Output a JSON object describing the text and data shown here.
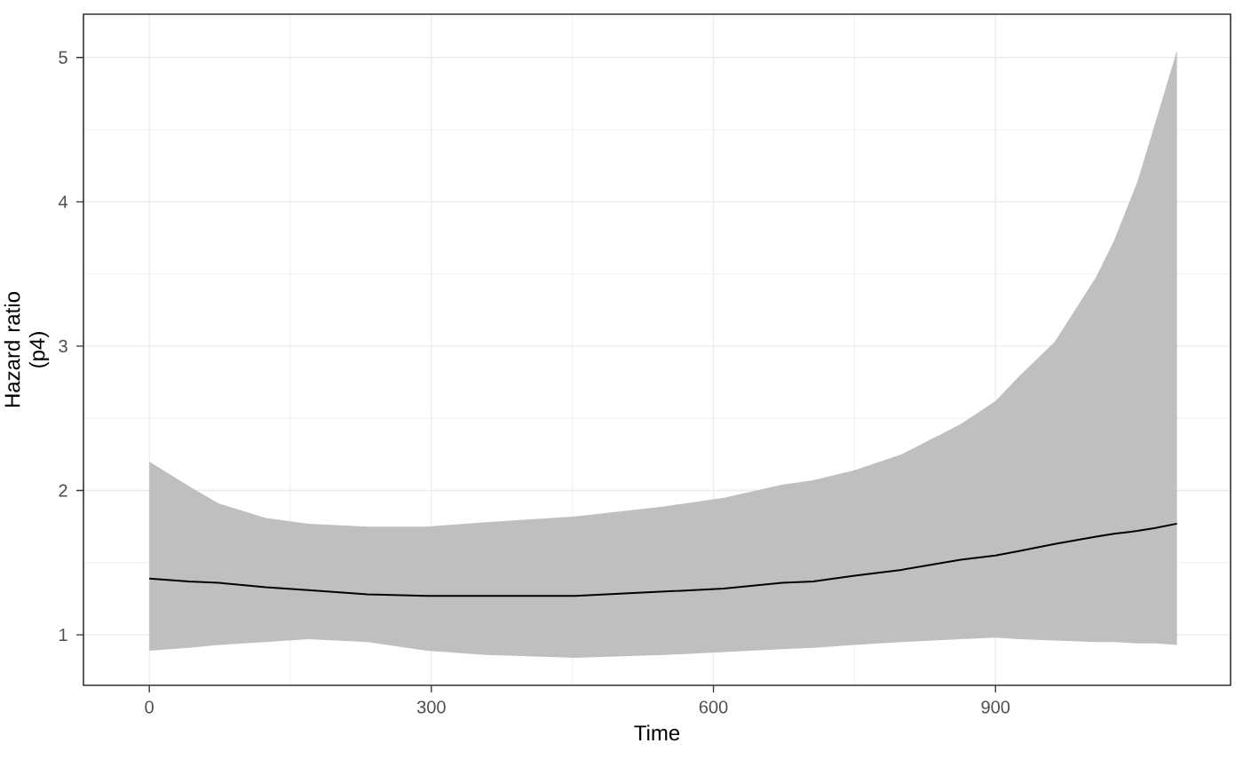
{
  "chart_data": {
    "type": "line",
    "xlabel": "Time",
    "ylabel": "Hazard ratio (p4)",
    "x": [
      0,
      42,
      74,
      124,
      169,
      232,
      295,
      358,
      453,
      548,
      611,
      673,
      706,
      750,
      800,
      863,
      900,
      925,
      963,
      1007,
      1026,
      1051,
      1070,
      1093
    ],
    "series": [
      {
        "color": "#000000",
        "values": [
          1.39,
          1.37,
          1.36,
          1.33,
          1.31,
          1.28,
          1.27,
          1.27,
          1.27,
          1.3,
          1.32,
          1.36,
          1.37,
          1.41,
          1.45,
          1.52,
          1.55,
          1.58,
          1.63,
          1.68,
          1.7,
          1.72,
          1.74,
          1.77
        ],
        "lower": [
          0.89,
          0.91,
          0.93,
          0.95,
          0.97,
          0.95,
          0.89,
          0.86,
          0.84,
          0.86,
          0.88,
          0.9,
          0.91,
          0.93,
          0.95,
          0.97,
          0.98,
          0.97,
          0.96,
          0.95,
          0.95,
          0.94,
          0.94,
          0.93
        ],
        "upper": [
          2.2,
          2.03,
          1.91,
          1.81,
          1.77,
          1.75,
          1.75,
          1.78,
          1.82,
          1.89,
          1.95,
          2.04,
          2.07,
          2.14,
          2.25,
          2.46,
          2.62,
          2.79,
          3.03,
          3.48,
          3.73,
          4.14,
          4.55,
          5.05
        ]
      }
    ],
    "xlim": [
      -70,
      1150
    ],
    "ylim": [
      0.65,
      5.3
    ],
    "xticks": [
      0,
      300,
      600,
      900
    ],
    "yticks": [
      1,
      2,
      3,
      4,
      5
    ],
    "grid": true,
    "marker": "none",
    "line_style": "solid"
  }
}
